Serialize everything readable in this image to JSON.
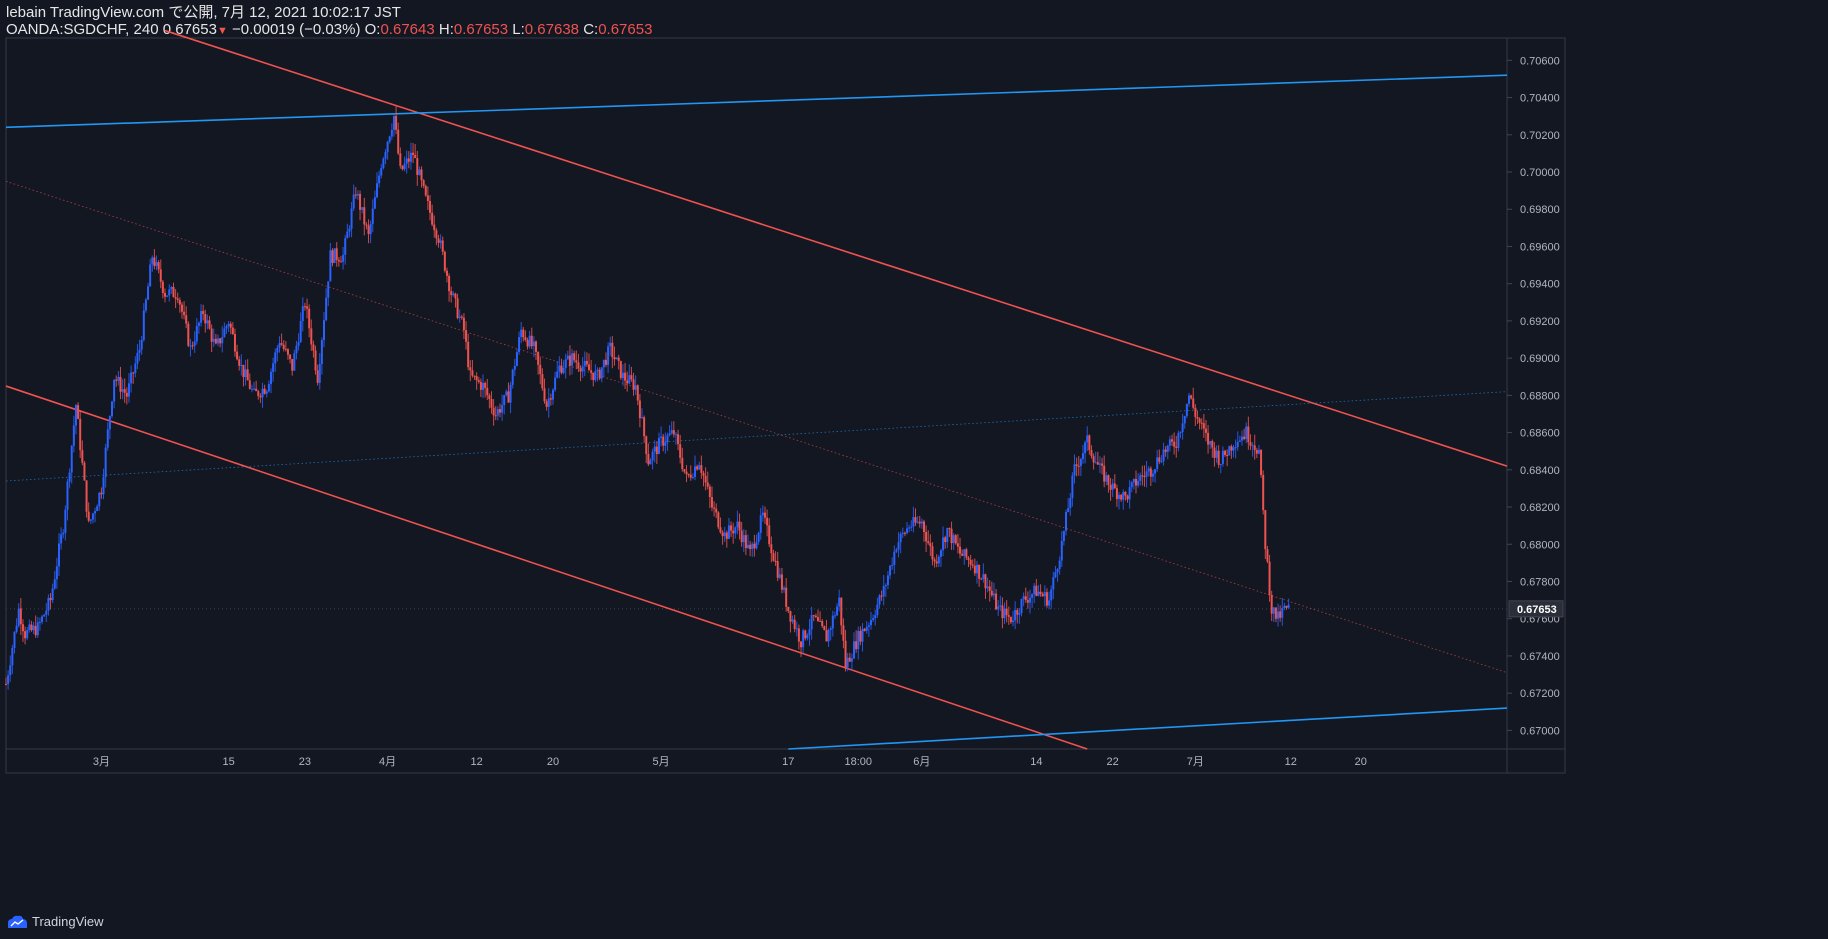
{
  "header": {
    "publish_line": "lebain TradingView.com で公開, 7月 12, 2021 10:02:17 JST",
    "symbol": "OANDA:SGDCHF, 240",
    "last_price": "0.67653",
    "change": "−0.00019 (−0.03%)",
    "open_label": "O:",
    "open_value": "0.67643",
    "high_label": "H:",
    "high_value": "0.67653",
    "low_label": "L:",
    "low_value": "0.67638",
    "close_label": "C:",
    "close_value": "0.67653"
  },
  "footer": {
    "brand": "TradingView"
  },
  "chart_data": {
    "type": "candlestick",
    "symbol": "OANDA:SGDCHF",
    "interval": "240",
    "colors": {
      "background": "#131722",
      "up": "#2962ff",
      "down": "#ef5350",
      "channel_down": "#ef5350",
      "channel_up": "#2196f3",
      "grid": "#2a2e39",
      "axis_text": "#b2b5be"
    },
    "ylim": [
      0.669,
      0.7072
    ],
    "price_ticks": [
      "0.70600",
      "0.70400",
      "0.70200",
      "0.70000",
      "0.69800",
      "0.69600",
      "0.69400",
      "0.69200",
      "0.69000",
      "0.68800",
      "0.68600",
      "0.68400",
      "0.68200",
      "0.68000",
      "0.67800",
      "0.67600",
      "0.67400",
      "0.67200",
      "0.67000"
    ],
    "price_tick_values": [
      0.706,
      0.704,
      0.702,
      0.7,
      0.698,
      0.696,
      0.694,
      0.692,
      0.69,
      0.688,
      0.686,
      0.684,
      0.682,
      0.68,
      0.678,
      0.676,
      0.674,
      0.672,
      0.67
    ],
    "last_price_label": "0.67653",
    "last_price_value": 0.67653,
    "x_range": [
      0,
      236
    ],
    "time_ticks": [
      {
        "label": "3月",
        "x": 15
      },
      {
        "label": "15",
        "x": 35
      },
      {
        "label": "23",
        "x": 47
      },
      {
        "label": "4月",
        "x": 60
      },
      {
        "label": "12",
        "x": 74
      },
      {
        "label": "20",
        "x": 86
      },
      {
        "label": "5月",
        "x": 103
      },
      {
        "label": "17",
        "x": 123
      },
      {
        "label": "18:00",
        "x": 134
      },
      {
        "label": "6月",
        "x": 144
      },
      {
        "label": "14",
        "x": 162
      },
      {
        "label": "22",
        "x": 174
      },
      {
        "label": "7月",
        "x": 187
      },
      {
        "label": "12",
        "x": 202
      },
      {
        "label": "20",
        "x": 213
      }
    ],
    "path_anchors": [
      [
        0,
        0.6725
      ],
      [
        2,
        0.6765
      ],
      [
        3,
        0.6752
      ],
      [
        5,
        0.6755
      ],
      [
        7,
        0.677
      ],
      [
        9,
        0.681
      ],
      [
        11,
        0.6875
      ],
      [
        13,
        0.681
      ],
      [
        15,
        0.683
      ],
      [
        17,
        0.689
      ],
      [
        19,
        0.688
      ],
      [
        21,
        0.6905
      ],
      [
        23,
        0.6955
      ],
      [
        25,
        0.6935
      ],
      [
        27,
        0.6935
      ],
      [
        29,
        0.6905
      ],
      [
        31,
        0.6925
      ],
      [
        33,
        0.6905
      ],
      [
        35,
        0.692
      ],
      [
        37,
        0.6895
      ],
      [
        39,
        0.688
      ],
      [
        41,
        0.6885
      ],
      [
        43,
        0.691
      ],
      [
        45,
        0.6895
      ],
      [
        47,
        0.693
      ],
      [
        49,
        0.689
      ],
      [
        51,
        0.6955
      ],
      [
        53,
        0.6955
      ],
      [
        55,
        0.699
      ],
      [
        57,
        0.6965
      ],
      [
        59,
        0.7005
      ],
      [
        61,
        0.703
      ],
      [
        62,
        0.7
      ],
      [
        64,
        0.701
      ],
      [
        66,
        0.6985
      ],
      [
        68,
        0.6965
      ],
      [
        70,
        0.6935
      ],
      [
        72,
        0.6915
      ],
      [
        73,
        0.689
      ],
      [
        75,
        0.6885
      ],
      [
        77,
        0.687
      ],
      [
        79,
        0.688
      ],
      [
        81,
        0.6915
      ],
      [
        83,
        0.6905
      ],
      [
        85,
        0.6875
      ],
      [
        87,
        0.6895
      ],
      [
        89,
        0.69
      ],
      [
        91,
        0.6895
      ],
      [
        93,
        0.689
      ],
      [
        95,
        0.6905
      ],
      [
        97,
        0.689
      ],
      [
        99,
        0.6885
      ],
      [
        101,
        0.6845
      ],
      [
        103,
        0.6855
      ],
      [
        105,
        0.686
      ],
      [
        107,
        0.6835
      ],
      [
        109,
        0.6845
      ],
      [
        111,
        0.682
      ],
      [
        113,
        0.6805
      ],
      [
        115,
        0.681
      ],
      [
        117,
        0.6795
      ],
      [
        119,
        0.6815
      ],
      [
        121,
        0.679
      ],
      [
        123,
        0.6765
      ],
      [
        125,
        0.6748
      ],
      [
        127,
        0.676
      ],
      [
        129,
        0.675
      ],
      [
        131,
        0.677
      ],
      [
        132,
        0.6735
      ],
      [
        134,
        0.675
      ],
      [
        136,
        0.676
      ],
      [
        138,
        0.6775
      ],
      [
        140,
        0.68
      ],
      [
        142,
        0.681
      ],
      [
        144,
        0.6812
      ],
      [
        146,
        0.679
      ],
      [
        148,
        0.6808
      ],
      [
        150,
        0.6795
      ],
      [
        152,
        0.679
      ],
      [
        154,
        0.678
      ],
      [
        156,
        0.6765
      ],
      [
        158,
        0.676
      ],
      [
        160,
        0.677
      ],
      [
        162,
        0.6775
      ],
      [
        164,
        0.677
      ],
      [
        166,
        0.68
      ],
      [
        168,
        0.684
      ],
      [
        170,
        0.6855
      ],
      [
        172,
        0.684
      ],
      [
        174,
        0.683
      ],
      [
        176,
        0.6825
      ],
      [
        178,
        0.6835
      ],
      [
        180,
        0.684
      ],
      [
        182,
        0.685
      ],
      [
        184,
        0.6855
      ],
      [
        186,
        0.688
      ],
      [
        187,
        0.687
      ],
      [
        189,
        0.6855
      ],
      [
        191,
        0.6845
      ],
      [
        193,
        0.6855
      ],
      [
        195,
        0.686
      ],
      [
        197,
        0.685
      ],
      [
        198,
        0.68
      ],
      [
        199,
        0.6765
      ],
      [
        200,
        0.676
      ],
      [
        201,
        0.6765
      ],
      [
        202,
        0.67653
      ]
    ],
    "trendlines": [
      {
        "name": "channel-upper-red",
        "color": "#ef5350",
        "width": 1.6,
        "style": "solid",
        "x1": 25,
        "y1": 0.7076,
        "x2": 236,
        "y2": 0.6842
      },
      {
        "name": "channel-lower-red",
        "color": "#ef5350",
        "width": 1.6,
        "style": "solid",
        "x1": 0,
        "y1": 0.6885,
        "x2": 170,
        "y2": 0.669
      },
      {
        "name": "channel-mid-red",
        "color": "#ef5350",
        "width": 0.8,
        "style": "dotted",
        "x1": 0,
        "y1": 0.6995,
        "x2": 236,
        "y2": 0.6731
      },
      {
        "name": "channel-upper-blue",
        "color": "#2196f3",
        "width": 1.6,
        "style": "solid",
        "x1": 0,
        "y1": 0.7024,
        "x2": 236,
        "y2": 0.7052
      },
      {
        "name": "channel-lower-blue",
        "color": "#2196f3",
        "width": 1.6,
        "style": "solid",
        "x1": 123,
        "y1": 0.669,
        "x2": 236,
        "y2": 0.6712
      },
      {
        "name": "channel-mid-blue",
        "color": "#2196f3",
        "width": 0.8,
        "style": "dotted",
        "x1": 0,
        "y1": 0.6834,
        "x2": 236,
        "y2": 0.6882
      }
    ]
  }
}
